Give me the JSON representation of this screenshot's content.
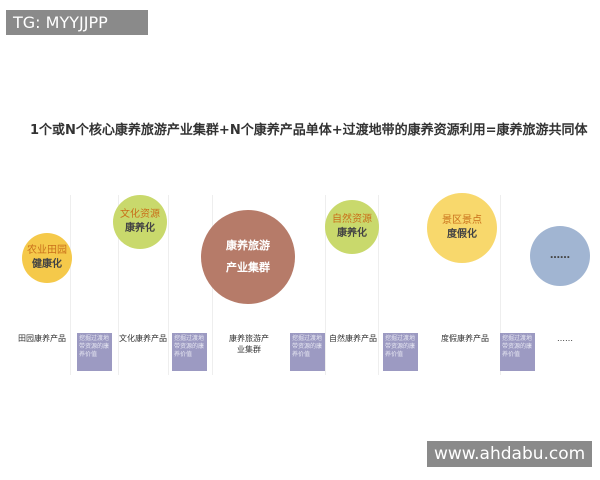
{
  "watermark_tag": "TG: MYYJJPP",
  "site": "www.ahdabu.com",
  "title": "1个或N个核心康养旅游产业集群+N个康养产品单体+过渡地带的康养资源利用=康养旅游共同体",
  "circles": [
    {
      "l1": "农业田园",
      "l2": "健康化",
      "color": "#f5c94a"
    },
    {
      "l1": "文化资源",
      "l2": "康养化",
      "color": "#c9d96c"
    },
    {
      "l1": "康养旅游",
      "l2": "产业集群",
      "color": "#b67b69"
    },
    {
      "l1": "自然资源",
      "l2": "康养化",
      "color": "#c9d96c"
    },
    {
      "l1": "景区景点",
      "l2": "度假化",
      "color": "#f8d86c"
    },
    {
      "l1": "",
      "l2": "……",
      "color": "#a1b5d2"
    }
  ],
  "labels": [
    "田园康养产品",
    "文化康养产品",
    "康养旅游产业集群",
    "自然康养产品",
    "度假康养产品",
    "……"
  ],
  "transition_box": "挖掘过渡地带资源的康养价值"
}
